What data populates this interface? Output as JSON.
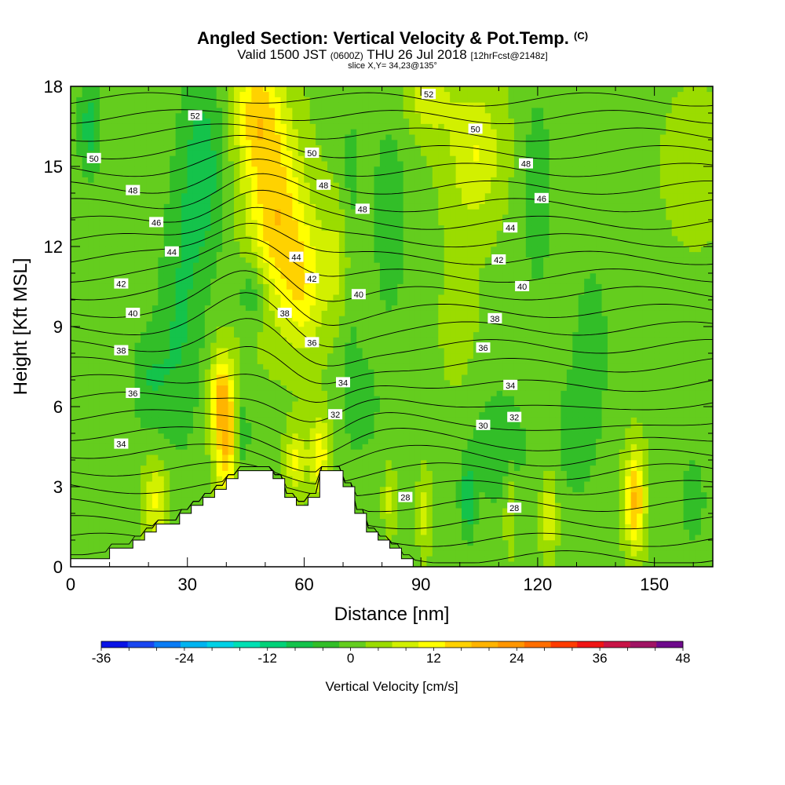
{
  "chart_data": {
    "type": "heatmap",
    "title": "Angled Section: Vertical Velocity & Pot.Temp.",
    "title_suffix": "(C)",
    "subtitle_main_a": "Valid 1500 JST",
    "subtitle_small_a": "(0600Z)",
    "subtitle_main_b": "THU 26 Jul 2018",
    "subtitle_small_b": "[12hrFcst@2148z]",
    "slice_label": "slice X,Y= 34,23@135°",
    "xlabel": "Distance [nm]",
    "ylabel": "Height [Kft MSL]",
    "xlim": [
      0,
      165
    ],
    "ylim": [
      0,
      18
    ],
    "xticks": [
      "0",
      "30",
      "60",
      "90",
      "120",
      "150"
    ],
    "yticks": [
      "0",
      "3",
      "6",
      "9",
      "12",
      "15",
      "18"
    ],
    "colorbar": {
      "label": "Vertical Velocity [cm/s]",
      "min": -36,
      "max": 48,
      "step": 4,
      "tick_labels": [
        "-36",
        "-24",
        "-12",
        "0",
        "12",
        "24",
        "36",
        "48"
      ],
      "colors": [
        "#0a14e6",
        "#1a46f0",
        "#0a7cf5",
        "#00b4f0",
        "#00d2e6",
        "#00e0b4",
        "#00d278",
        "#14c34b",
        "#32be28",
        "#64cd1e",
        "#9bdc00",
        "#d2f000",
        "#ffff00",
        "#ffd200",
        "#ffb400",
        "#ff9600",
        "#ff6e00",
        "#ff3c00",
        "#f01414",
        "#c81446",
        "#a01464",
        "#6e0a8c"
      ]
    },
    "terrain_profile": [
      [
        0,
        0.3
      ],
      [
        10,
        0.3
      ],
      [
        10,
        0.7
      ],
      [
        16,
        0.7
      ],
      [
        16,
        1.0
      ],
      [
        19,
        1.0
      ],
      [
        19,
        1.3
      ],
      [
        22,
        1.3
      ],
      [
        22,
        1.6
      ],
      [
        28,
        1.6
      ],
      [
        28,
        2.0
      ],
      [
        31,
        2.0
      ],
      [
        31,
        2.3
      ],
      [
        34,
        2.3
      ],
      [
        34,
        2.6
      ],
      [
        37,
        2.6
      ],
      [
        37,
        2.9
      ],
      [
        40,
        2.9
      ],
      [
        40,
        3.3
      ],
      [
        43,
        3.3
      ],
      [
        43,
        3.6
      ],
      [
        52,
        3.6
      ],
      [
        52,
        3.3
      ],
      [
        55,
        3.3
      ],
      [
        55,
        2.6
      ],
      [
        58,
        2.6
      ],
      [
        58,
        2.3
      ],
      [
        61,
        2.3
      ],
      [
        61,
        2.6
      ],
      [
        64,
        2.6
      ],
      [
        64,
        3.6
      ],
      [
        70,
        3.6
      ],
      [
        70,
        3.0
      ],
      [
        73,
        3.0
      ],
      [
        73,
        2.0
      ],
      [
        76,
        2.0
      ],
      [
        76,
        1.3
      ],
      [
        79,
        1.3
      ],
      [
        79,
        1.0
      ],
      [
        82,
        1.0
      ],
      [
        82,
        0.7
      ],
      [
        85,
        0.7
      ],
      [
        85,
        0.3
      ],
      [
        88,
        0.3
      ],
      [
        88,
        0.0
      ]
    ],
    "velocity_features": [
      {
        "x": 53,
        "h": 13,
        "sx": 7,
        "sh": 3.5,
        "v": 16
      },
      {
        "x": 48,
        "h": 17,
        "sx": 6,
        "sh": 2.5,
        "v": 14
      },
      {
        "x": 60,
        "h": 10.5,
        "sx": 5,
        "sh": 2.5,
        "v": 10
      },
      {
        "x": 70,
        "h": 11.5,
        "sx": 5,
        "sh": 2.5,
        "v": 8
      },
      {
        "x": 104,
        "h": 15.5,
        "sx": 7,
        "sh": 2.5,
        "v": 9
      },
      {
        "x": 92,
        "h": 17.5,
        "sx": 6,
        "sh": 1.5,
        "v": 7
      },
      {
        "x": 40,
        "h": 5,
        "sx": 3,
        "sh": 2.5,
        "v": 18
      },
      {
        "x": 38,
        "h": 6.5,
        "sx": 2.5,
        "sh": 1.5,
        "v": 10
      },
      {
        "x": 58,
        "h": 4,
        "sx": 2.5,
        "sh": 1.2,
        "v": 10
      },
      {
        "x": 64,
        "h": 4.2,
        "sx": 2.5,
        "sh": 1.5,
        "v": 12
      },
      {
        "x": 22,
        "h": 2.5,
        "sx": 3,
        "sh": 1.5,
        "v": 10
      },
      {
        "x": 145,
        "h": 2.5,
        "sx": 2.5,
        "sh": 1.8,
        "v": 18
      },
      {
        "x": 123,
        "h": 2.0,
        "sx": 2,
        "sh": 1.5,
        "v": 9
      },
      {
        "x": 113,
        "h": 2.2,
        "sx": 1.5,
        "sh": 1.5,
        "v": 7
      },
      {
        "x": 91,
        "h": 2.0,
        "sx": 1.5,
        "sh": 1.5,
        "v": 7
      },
      {
        "x": 82,
        "h": 2.5,
        "sx": 1.5,
        "sh": 1.2,
        "v": 6
      },
      {
        "x": 28,
        "h": 9,
        "sx": 6,
        "sh": 5,
        "v": -7
      },
      {
        "x": 34,
        "h": 15,
        "sx": 6,
        "sh": 4,
        "v": -9
      },
      {
        "x": 5,
        "h": 16.5,
        "sx": 3,
        "sh": 2,
        "v": -9
      },
      {
        "x": 72,
        "h": 12,
        "sx": 3,
        "sh": 5,
        "v": -7
      },
      {
        "x": 82,
        "h": 13,
        "sx": 5,
        "sh": 4,
        "v": -6
      },
      {
        "x": 120,
        "h": 14,
        "sx": 4,
        "sh": 4,
        "v": -6
      },
      {
        "x": 47,
        "h": 10.3,
        "sx": 4,
        "sh": 1.3,
        "v": -8
      },
      {
        "x": 102,
        "h": 2.5,
        "sx": 2,
        "sh": 1.5,
        "v": -10
      },
      {
        "x": 110,
        "h": 4.5,
        "sx": 8,
        "sh": 2.5,
        "v": -6
      },
      {
        "x": 130,
        "h": 5,
        "sx": 6,
        "sh": 3,
        "v": -5
      },
      {
        "x": 134,
        "h": 8.5,
        "sx": 4,
        "sh": 3,
        "v": -6
      },
      {
        "x": 20,
        "h": 7,
        "sx": 5,
        "sh": 2,
        "v": -6
      },
      {
        "x": 44,
        "h": 5,
        "sx": 2,
        "sh": 1.5,
        "v": -8
      },
      {
        "x": 75,
        "h": 6,
        "sx": 5,
        "sh": 2,
        "v": -5
      },
      {
        "x": 160,
        "h": 2.5,
        "sx": 4,
        "sh": 2,
        "v": -5
      },
      {
        "x": 100,
        "h": 9,
        "sx": 6,
        "sh": 4,
        "v": 2
      },
      {
        "x": 160,
        "h": 15,
        "sx": 8,
        "sh": 3,
        "v": 3
      }
    ],
    "theta_labels": [
      {
        "text": "52",
        "x": 92,
        "h": 17.7
      },
      {
        "text": "52",
        "x": 32,
        "h": 16.9
      },
      {
        "text": "50",
        "x": 6,
        "h": 15.3
      },
      {
        "text": "50",
        "x": 62,
        "h": 15.5
      },
      {
        "text": "50",
        "x": 104,
        "h": 16.4
      },
      {
        "text": "48",
        "x": 16,
        "h": 14.1
      },
      {
        "text": "48",
        "x": 65,
        "h": 14.3
      },
      {
        "text": "48",
        "x": 75,
        "h": 13.4
      },
      {
        "text": "48",
        "x": 117,
        "h": 15.1
      },
      {
        "text": "46",
        "x": 22,
        "h": 12.9
      },
      {
        "text": "46",
        "x": 121,
        "h": 13.8
      },
      {
        "text": "44",
        "x": 26,
        "h": 11.8
      },
      {
        "text": "44",
        "x": 58,
        "h": 11.6
      },
      {
        "text": "44",
        "x": 113,
        "h": 12.7
      },
      {
        "text": "42",
        "x": 13,
        "h": 10.6
      },
      {
        "text": "42",
        "x": 62,
        "h": 10.8
      },
      {
        "text": "42",
        "x": 110,
        "h": 11.5
      },
      {
        "text": "40",
        "x": 16,
        "h": 9.5
      },
      {
        "text": "40",
        "x": 74,
        "h": 10.2
      },
      {
        "text": "40",
        "x": 116,
        "h": 10.5
      },
      {
        "text": "38",
        "x": 13,
        "h": 8.1
      },
      {
        "text": "38",
        "x": 55,
        "h": 9.5
      },
      {
        "text": "38",
        "x": 109,
        "h": 9.3
      },
      {
        "text": "36",
        "x": 16,
        "h": 6.5
      },
      {
        "text": "36",
        "x": 62,
        "h": 8.4
      },
      {
        "text": "36",
        "x": 106,
        "h": 8.2
      },
      {
        "text": "34",
        "x": 13,
        "h": 4.6
      },
      {
        "text": "34",
        "x": 70,
        "h": 6.9
      },
      {
        "text": "34",
        "x": 113,
        "h": 6.8
      },
      {
        "text": "32",
        "x": 68,
        "h": 5.7
      },
      {
        "text": "32",
        "x": 114,
        "h": 5.6
      },
      {
        "text": "30",
        "x": 106,
        "h": 5.3
      },
      {
        "text": "28",
        "x": 86,
        "h": 2.6
      },
      {
        "text": "28",
        "x": 114,
        "h": 2.2
      }
    ]
  }
}
